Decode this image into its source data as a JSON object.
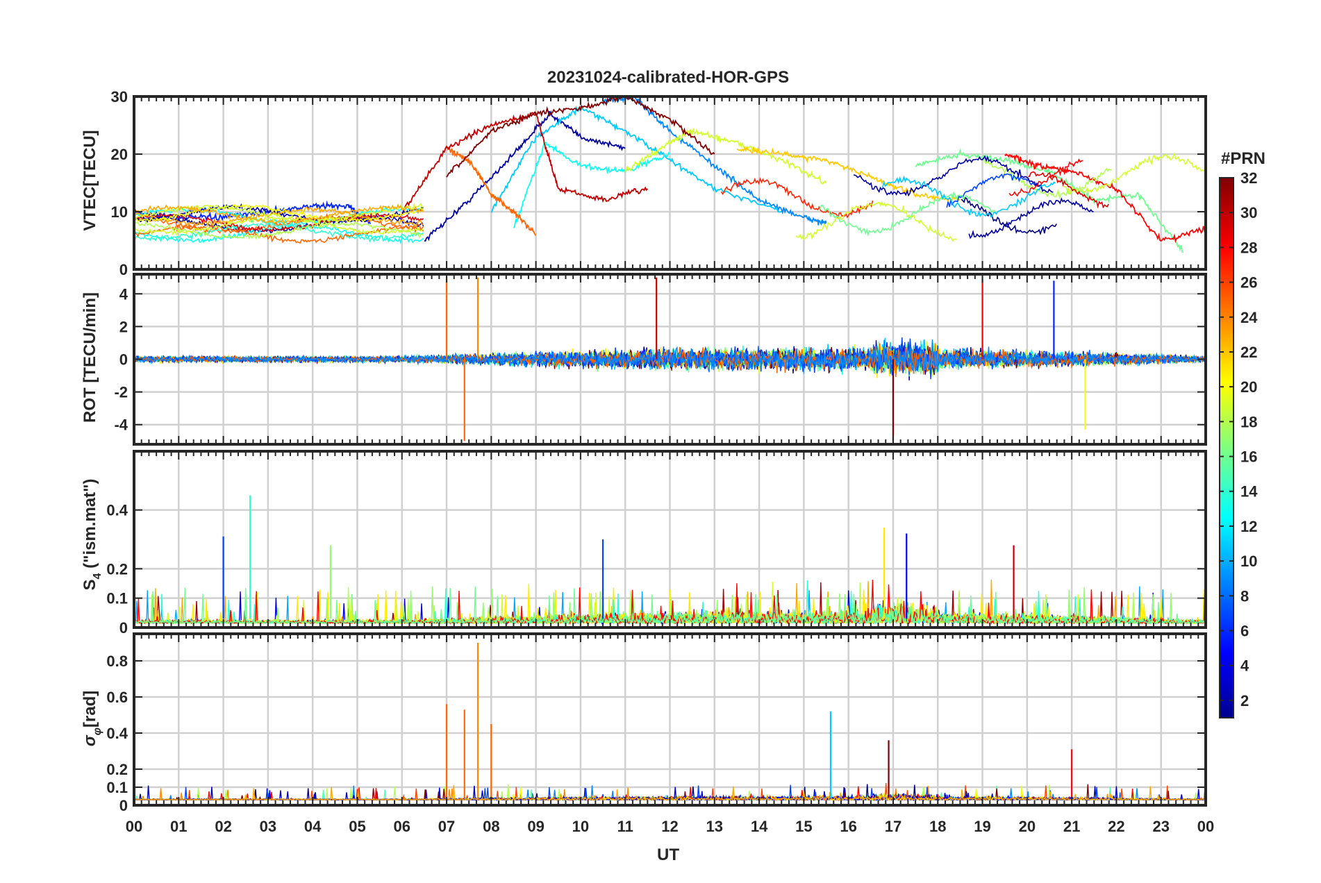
{
  "chart_data": {
    "type": "line",
    "title": "20231024-calibrated-HOR-GPS",
    "xlabel": "UT",
    "x_range": [
      0,
      24
    ],
    "x_tick_labels": [
      "00",
      "01",
      "02",
      "03",
      "04",
      "05",
      "06",
      "07",
      "08",
      "09",
      "10",
      "11",
      "12",
      "13",
      "14",
      "15",
      "16",
      "17",
      "18",
      "19",
      "20",
      "21",
      "22",
      "23",
      "00"
    ],
    "grid": true,
    "colorbar": {
      "title": "#PRN",
      "range": [
        1,
        32
      ],
      "tick_labels": [
        "32",
        "30",
        "28",
        "26",
        "24",
        "22",
        "20",
        "18",
        "16",
        "14",
        "12",
        "10",
        "8",
        "6",
        "4",
        "2"
      ],
      "colormap": "jet",
      "placement": "right"
    },
    "panels": [
      {
        "id": "vtec",
        "ylabel": "VTEC[TECU]",
        "ylim": [
          0,
          30
        ],
        "yticks": [
          0,
          10,
          20,
          30
        ],
        "ytick_labels": [
          "0",
          "10",
          "20",
          "30"
        ],
        "series": [
          {
            "name": "PRN 2",
            "x": [
              6.5,
              7.5,
              8.5,
              9.3,
              10.0,
              11.0
            ],
            "values": [
              5,
              12,
              20,
              27,
              23,
              21
            ]
          },
          {
            "name": "PRN 6",
            "x": [
              0,
              1,
              2,
              3,
              4,
              4.8,
              5.3
            ],
            "values": [
              10,
              9,
              9,
              10,
              11,
              11,
              8
            ]
          },
          {
            "name": "PRN 9",
            "x": [
              10.5,
              11.2,
              12.0,
              13.0,
              14.0,
              15.0,
              15.5
            ],
            "values": [
              29,
              30,
              24,
              18,
              12,
              9,
              8
            ]
          },
          {
            "name": "PRN 11",
            "x": [
              8.0,
              9.0,
              10.0,
              11.0,
              12.0,
              13.0,
              14.5
            ],
            "values": [
              10,
              23,
              28,
              24,
              19,
              14,
              10
            ]
          },
          {
            "name": "PRN 13",
            "x": [
              8.5,
              9.2,
              10.0,
              11.0,
              12.0
            ],
            "values": [
              7,
              22,
              18,
              17,
              20
            ]
          },
          {
            "name": "PRN 16",
            "x": [
              17.5,
              18.5,
              19.5,
              20.5,
              21.5,
              22.5,
              23.5
            ],
            "values": [
              18,
              20,
              19,
              17,
              12,
              13,
              3
            ]
          },
          {
            "name": "PRN 19",
            "x": [
              11.0,
              12.0,
              12.5,
              13.5,
              14.5,
              15.5
            ],
            "values": [
              17,
              22,
              24,
              22,
              19,
              15
            ]
          },
          {
            "name": "PRN 22",
            "x": [
              13.5,
              14.5,
              15.5,
              16.5,
              17.5,
              18.5
            ],
            "values": [
              21,
              20,
              19,
              16,
              13,
              12
            ]
          },
          {
            "name": "PRN 25",
            "x": [
              7.0,
              7.5,
              8.0,
              8.5,
              9.0
            ],
            "values": [
              21,
              19,
              13,
              10,
              6
            ]
          },
          {
            "name": "PRN 28",
            "x": [
              19.5,
              20.2,
              21.0,
              22.0,
              23.0,
              24.0
            ],
            "values": [
              20,
              18,
              17,
              14,
              5,
              7
            ]
          },
          {
            "name": "PRN 30",
            "x": [
              6.0,
              7.0,
              8.0,
              9.0,
              9.5,
              10.5,
              11.5
            ],
            "values": [
              10,
              21,
              25,
              27,
              14,
              12,
              14
            ]
          },
          {
            "name": "PRN 32",
            "x": [
              7.0,
              8.0,
              9.0,
              10.0,
              11.0,
              12.0,
              13.0
            ],
            "values": [
              16,
              24,
              27,
              28,
              30,
              26,
              20
            ]
          }
        ]
      },
      {
        "id": "rot",
        "ylabel": "ROT [TECU/min]",
        "ylim": [
          -5.2,
          5.2
        ],
        "yticks": [
          -4,
          -2,
          0,
          2,
          4
        ],
        "ytick_labels": [
          "-4",
          "-2",
          "0",
          "2",
          "4"
        ],
        "peaks": [
          {
            "x": 7.0,
            "value": 5.0,
            "prn": 25
          },
          {
            "x": 7.4,
            "value": -5.0,
            "prn": 25
          },
          {
            "x": 7.7,
            "value": 5.0,
            "prn": 24
          },
          {
            "x": 11.7,
            "value": 5.0,
            "prn": 30
          },
          {
            "x": 17.0,
            "value": -5.0,
            "prn": 32
          },
          {
            "x": 19.0,
            "value": 4.9,
            "prn": 28
          },
          {
            "x": 20.6,
            "value": 4.8,
            "prn": 6
          },
          {
            "x": 21.3,
            "value": -4.3,
            "prn": 20
          }
        ]
      },
      {
        "id": "s4",
        "ylabel": "S4 (\"ism.mat\")",
        "ylim": [
          0,
          0.6
        ],
        "yticks": [
          0,
          0.1,
          0.2,
          0.4
        ],
        "ytick_labels": [
          "0",
          "0.1",
          "0.2",
          "0.4"
        ],
        "peaks": [
          {
            "x": 2.0,
            "value": 0.31,
            "prn": 7
          },
          {
            "x": 2.6,
            "value": 0.45,
            "prn": 14
          },
          {
            "x": 4.4,
            "value": 0.28,
            "prn": 17
          },
          {
            "x": 10.5,
            "value": 0.3,
            "prn": 7
          },
          {
            "x": 16.8,
            "value": 0.34,
            "prn": 21
          },
          {
            "x": 17.3,
            "value": 0.32,
            "prn": 5
          },
          {
            "x": 19.7,
            "value": 0.28,
            "prn": 30
          }
        ]
      },
      {
        "id": "sigma_phi",
        "ylabel": "σφ[rad]",
        "ylim": [
          0,
          0.95
        ],
        "yticks": [
          0,
          0.1,
          0.2,
          0.4,
          0.6,
          0.8
        ],
        "ytick_labels": [
          "0",
          "0.1",
          "0.2",
          "0.4",
          "0.6",
          "0.8"
        ],
        "peaks": [
          {
            "x": 7.0,
            "value": 0.56,
            "prn": 25
          },
          {
            "x": 7.4,
            "value": 0.53,
            "prn": 25
          },
          {
            "x": 7.7,
            "value": 0.9,
            "prn": 24
          },
          {
            "x": 8.0,
            "value": 0.45,
            "prn": 25
          },
          {
            "x": 15.6,
            "value": 0.52,
            "prn": 11
          },
          {
            "x": 16.9,
            "value": 0.36,
            "prn": 32
          },
          {
            "x": 21.0,
            "value": 0.31,
            "prn": 28
          }
        ]
      }
    ]
  }
}
